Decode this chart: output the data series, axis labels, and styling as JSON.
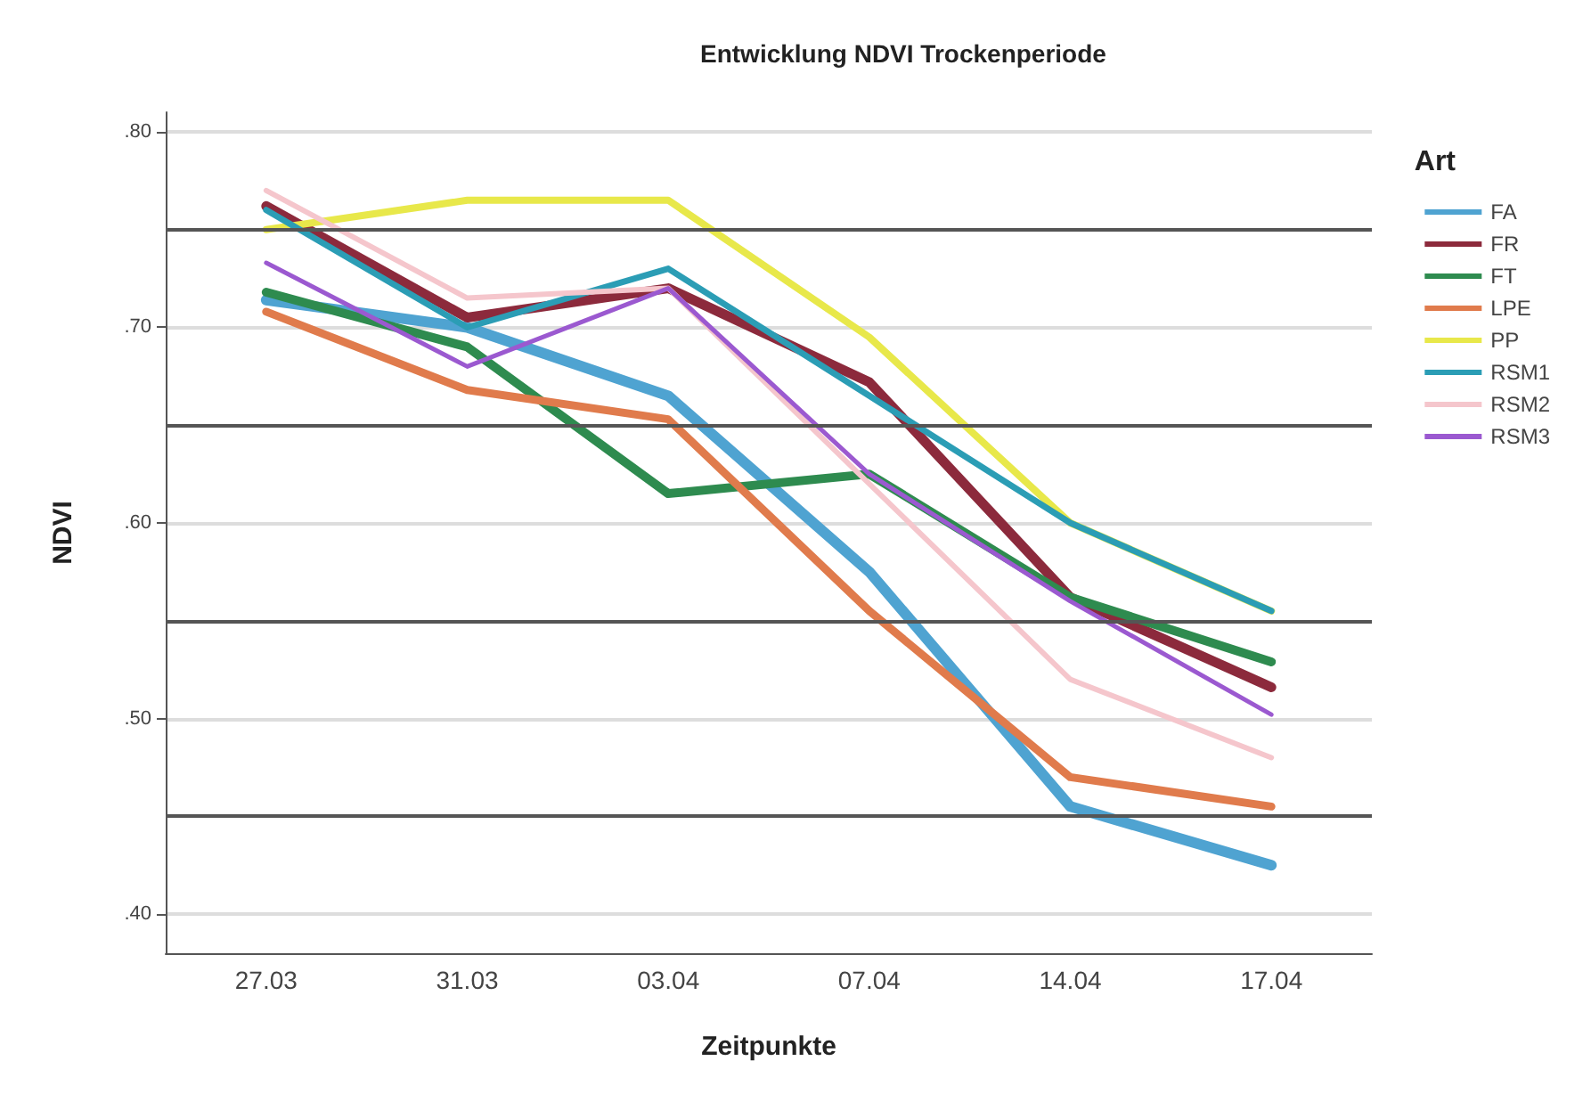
{
  "chart_data": {
    "type": "line",
    "title": "Entwicklung NDVI Trockenperiode",
    "xlabel": "Zeitpunkte",
    "ylabel": "NDVI",
    "legend_title": "Art",
    "categories": [
      "27.03",
      "31.03",
      "03.04",
      "07.04",
      "14.04",
      "17.04"
    ],
    "series": [
      {
        "name": "FA",
        "color": "#4fa3d1",
        "values": [
          0.714,
          0.7,
          0.665,
          0.575,
          0.455,
          0.425
        ]
      },
      {
        "name": "FR",
        "color": "#8c2a3c",
        "values": [
          0.762,
          0.705,
          0.72,
          0.672,
          0.562,
          0.516
        ]
      },
      {
        "name": "FT",
        "color": "#2e8b4f",
        "values": [
          0.718,
          0.69,
          0.615,
          0.625,
          0.562,
          0.529
        ]
      },
      {
        "name": "LPE",
        "color": "#e07b4c",
        "values": [
          0.708,
          0.668,
          0.653,
          0.555,
          0.47,
          0.455
        ]
      },
      {
        "name": "PP",
        "color": "#e8e84a",
        "values": [
          0.75,
          0.765,
          0.765,
          0.695,
          0.6,
          0.555
        ]
      },
      {
        "name": "RSM1",
        "color": "#2b9db5",
        "values": [
          0.76,
          0.7,
          0.73,
          0.665,
          0.6,
          0.555
        ]
      },
      {
        "name": "RSM2",
        "color": "#f5c6cc",
        "values": [
          0.77,
          0.715,
          0.72,
          0.62,
          0.52,
          0.48
        ]
      },
      {
        "name": "RSM3",
        "color": "#9b59d0",
        "values": [
          0.733,
          0.68,
          0.72,
          0.625,
          0.56,
          0.502
        ]
      }
    ],
    "ylim": [
      0.38,
      0.81
    ],
    "yticks": [
      {
        "value": 0.4,
        "label": ".40"
      },
      {
        "value": 0.5,
        "label": ".50"
      },
      {
        "value": 0.6,
        "label": ".60"
      },
      {
        "value": 0.7,
        "label": ".70"
      },
      {
        "value": 0.8,
        "label": ".80"
      }
    ],
    "ref_lines": [
      {
        "axis": "y",
        "value": 0.75,
        "label": null,
        "color": "#555555"
      },
      {
        "axis": "y",
        "value": 0.65,
        "label": null,
        "color": "#555555"
      },
      {
        "axis": "y",
        "value": 0.55,
        "label": null,
        "color": "#555555"
      },
      {
        "axis": "y",
        "value": 0.45,
        "label": null,
        "color": "#555555"
      }
    ],
    "grid": "y",
    "legend": "top right",
    "marker": "none",
    "line_style": "solid"
  }
}
